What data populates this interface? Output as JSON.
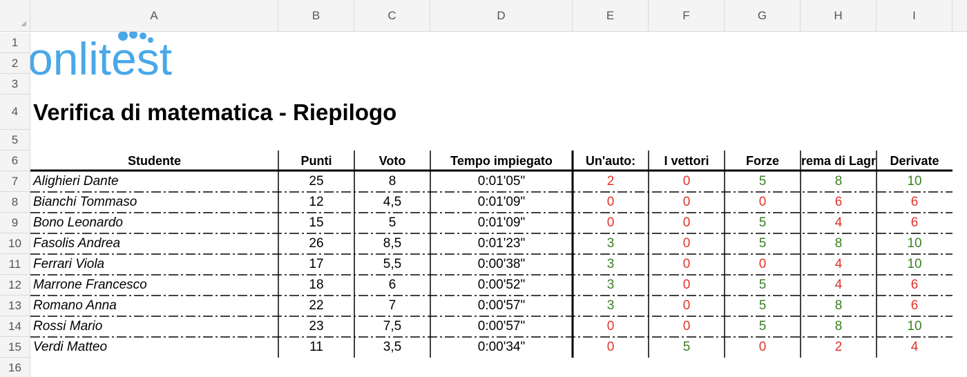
{
  "columns": [
    "A",
    "B",
    "C",
    "D",
    "E",
    "F",
    "G",
    "H",
    "I"
  ],
  "row_numbers": [
    1,
    2,
    3,
    4,
    5,
    6,
    7,
    8,
    9,
    10,
    11,
    12,
    13,
    14,
    15,
    16
  ],
  "logo": "onlitest",
  "title": "Verifica di matematica - Riepilogo",
  "colors": {
    "green": "#3b7f22",
    "red": "#e4322b"
  },
  "table": {
    "headers": [
      "Studente",
      "Punti",
      "Voto",
      "Tempo impiegato",
      "Un'auto:",
      "I vettori",
      "Forze",
      "rema di Lagr",
      "Derivate"
    ],
    "rows": [
      [
        "Alighieri Dante",
        25,
        8,
        "0:01'05\"",
        2,
        0,
        5,
        8,
        10
      ],
      [
        "Bianchi Tommaso",
        12,
        "4,5",
        "0:01'09\"",
        0,
        0,
        0,
        6,
        6
      ],
      [
        "Bono Leonardo",
        15,
        5,
        "0:01'09\"",
        0,
        0,
        5,
        4,
        6
      ],
      [
        "Fasolis Andrea",
        26,
        "8,5",
        "0:01'23\"",
        3,
        0,
        5,
        8,
        10
      ],
      [
        "Ferrari Viola",
        17,
        "5,5",
        "0:00'38\"",
        3,
        0,
        0,
        4,
        10
      ],
      [
        "Marrone Francesco",
        18,
        6,
        "0:00'52\"",
        3,
        0,
        5,
        4,
        6
      ],
      [
        "Romano Anna",
        22,
        7,
        "0:00'57\"",
        3,
        0,
        5,
        8,
        6
      ],
      [
        "Rossi Mario",
        23,
        "7,5",
        "0:00'57\"",
        0,
        0,
        5,
        8,
        10
      ],
      [
        "Verdi Matteo",
        11,
        "3,5",
        "0:00'34\"",
        0,
        5,
        0,
        2,
        4
      ]
    ],
    "score_colors": [
      [
        "red",
        "red",
        "green",
        "green",
        "green"
      ],
      [
        "red",
        "red",
        "red",
        "red",
        "red"
      ],
      [
        "red",
        "red",
        "green",
        "red",
        "red"
      ],
      [
        "green",
        "red",
        "green",
        "green",
        "green"
      ],
      [
        "green",
        "red",
        "red",
        "red",
        "green"
      ],
      [
        "green",
        "red",
        "green",
        "red",
        "red"
      ],
      [
        "green",
        "red",
        "green",
        "green",
        "red"
      ],
      [
        "red",
        "red",
        "green",
        "green",
        "green"
      ],
      [
        "red",
        "green",
        "red",
        "red",
        "red"
      ]
    ]
  }
}
